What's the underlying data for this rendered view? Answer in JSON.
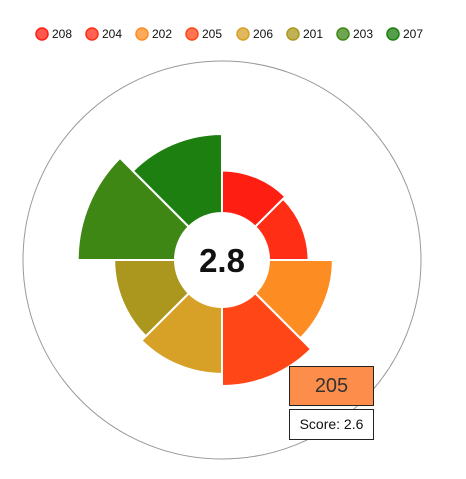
{
  "chart_data": {
    "type": "pie",
    "subtype": "polar-area (nightingale) with center hole",
    "center_value": "2.8",
    "max_score": 5,
    "legend_position": "top",
    "series": [
      {
        "name": "208",
        "value": 1.4,
        "color": "#ff1e12"
      },
      {
        "name": "204",
        "value": 1.3,
        "color": "#ff2e14"
      },
      {
        "name": "202",
        "value": 2.1,
        "color": "#fd8d23"
      },
      {
        "name": "205",
        "value": 2.6,
        "color": "#ff4617"
      },
      {
        "name": "206",
        "value": 2.2,
        "color": "#d7a026"
      },
      {
        "name": "201",
        "value": 2.0,
        "color": "#ab971e"
      },
      {
        "name": "203",
        "value": 3.2,
        "color": "#3f8715"
      },
      {
        "name": "207",
        "value": 2.6,
        "color": "#1c7f10"
      }
    ],
    "legend_order": [
      "208",
      "204",
      "202",
      "205",
      "206",
      "201",
      "203",
      "207"
    ]
  },
  "tooltip": {
    "title": "205",
    "label": "Score: 2.6",
    "color": "#fc8d4a"
  }
}
